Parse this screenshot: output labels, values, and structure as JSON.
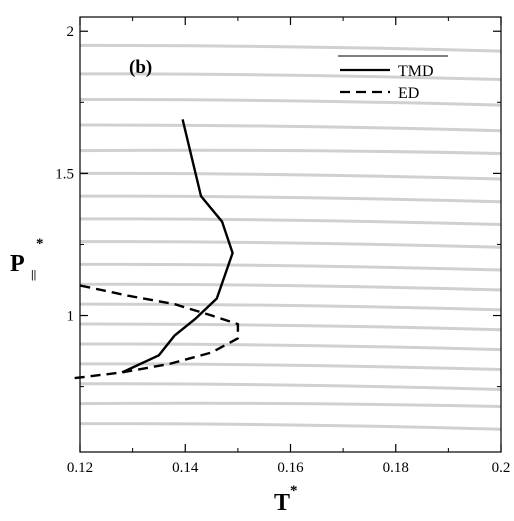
{
  "chart_data": {
    "type": "line",
    "panel_label": "(b)",
    "xlabel": "T",
    "xlabel_sup": "*",
    "ylabel": "P",
    "ylabel_sub": "||",
    "ylabel_sup": "*",
    "xlim": [
      0.12,
      0.2
    ],
    "ylim": [
      0.52,
      2.05
    ],
    "xticks": [
      {
        "value": 0.12,
        "label": "0.12"
      },
      {
        "value": 0.14,
        "label": "0.14"
      },
      {
        "value": 0.16,
        "label": "0.16"
      },
      {
        "value": 0.18,
        "label": "0.18"
      },
      {
        "value": 0.2,
        "label": "0.2"
      }
    ],
    "yticks": [
      {
        "value": 1.0,
        "label": "1"
      },
      {
        "value": 1.5,
        "label": "1.5"
      },
      {
        "value": 2.0,
        "label": "2"
      }
    ],
    "grid": false,
    "background_isobars": {
      "color": "#d0d0d0",
      "lines": [
        {
          "y_left": 0.62,
          "y_right": 0.6
        },
        {
          "y_left": 0.69,
          "y_right": 0.68
        },
        {
          "y_left": 0.76,
          "y_right": 0.74
        },
        {
          "y_left": 0.83,
          "y_right": 0.81
        },
        {
          "y_left": 0.9,
          "y_right": 0.88
        },
        {
          "y_left": 0.97,
          "y_right": 0.95
        },
        {
          "y_left": 1.04,
          "y_right": 1.02
        },
        {
          "y_left": 1.11,
          "y_right": 1.09
        },
        {
          "y_left": 1.18,
          "y_right": 1.16
        },
        {
          "y_left": 1.26,
          "y_right": 1.24
        },
        {
          "y_left": 1.34,
          "y_right": 1.32
        },
        {
          "y_left": 1.42,
          "y_right": 1.4
        },
        {
          "y_left": 1.5,
          "y_right": 1.48
        },
        {
          "y_left": 1.58,
          "y_right": 1.57
        },
        {
          "y_left": 1.67,
          "y_right": 1.65
        },
        {
          "y_left": 1.76,
          "y_right": 1.74
        },
        {
          "y_left": 1.85,
          "y_right": 1.83
        },
        {
          "y_left": 1.95,
          "y_right": 1.93
        }
      ]
    },
    "legend_position": "top-right",
    "series": [
      {
        "name": "TMD",
        "style": "solid",
        "color": "#000000",
        "points": [
          {
            "x": 0.128,
            "y": 0.8
          },
          {
            "x": 0.135,
            "y": 0.86
          },
          {
            "x": 0.138,
            "y": 0.93
          },
          {
            "x": 0.142,
            "y": 0.99
          },
          {
            "x": 0.146,
            "y": 1.06
          },
          {
            "x": 0.149,
            "y": 1.22
          },
          {
            "x": 0.147,
            "y": 1.33
          },
          {
            "x": 0.143,
            "y": 1.42
          },
          {
            "x": 0.1395,
            "y": 1.69
          }
        ]
      },
      {
        "name": "ED",
        "style": "dashed",
        "color": "#000000",
        "points": [
          {
            "x": 0.119,
            "y": 0.78
          },
          {
            "x": 0.128,
            "y": 0.8
          },
          {
            "x": 0.137,
            "y": 0.83
          },
          {
            "x": 0.145,
            "y": 0.87
          },
          {
            "x": 0.15,
            "y": 0.92
          },
          {
            "x": 0.15,
            "y": 0.97
          },
          {
            "x": 0.145,
            "y": 1.0
          },
          {
            "x": 0.138,
            "y": 1.04
          },
          {
            "x": 0.129,
            "y": 1.07
          },
          {
            "x": 0.119,
            "y": 1.11
          }
        ]
      }
    ]
  }
}
